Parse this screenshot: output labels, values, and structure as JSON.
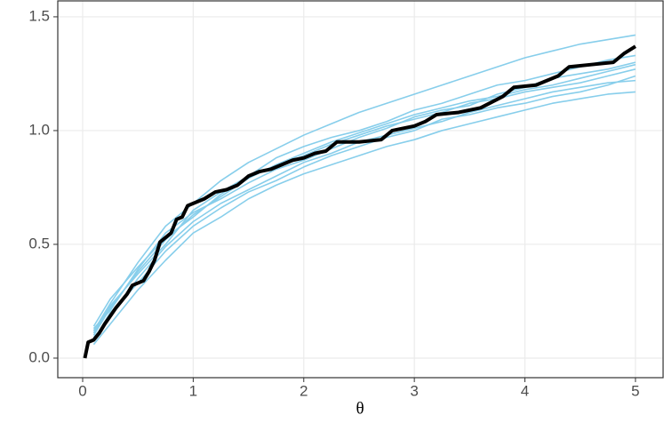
{
  "chart_data": {
    "type": "line",
    "x_label": "θ",
    "x": [
      0.1,
      0.25,
      0.5,
      0.75,
      1,
      1.25,
      1.5,
      1.75,
      2,
      2.25,
      2.5,
      2.75,
      3,
      3.25,
      3.5,
      3.75,
      4,
      4.25,
      4.5,
      4.75,
      5
    ],
    "series": [
      {
        "color": "#87ceeb",
        "values": [
          0.12,
          0.24,
          0.42,
          0.58,
          0.68,
          0.78,
          0.86,
          0.92,
          0.98,
          1.03,
          1.08,
          1.12,
          1.16,
          1.2,
          1.24,
          1.28,
          1.32,
          1.35,
          1.38,
          1.4,
          1.42
        ]
      },
      {
        "color": "#87ceeb",
        "values": [
          0.06,
          0.15,
          0.3,
          0.43,
          0.55,
          0.62,
          0.7,
          0.76,
          0.81,
          0.85,
          0.89,
          0.93,
          0.96,
          1.0,
          1.03,
          1.06,
          1.09,
          1.12,
          1.14,
          1.16,
          1.17
        ]
      },
      {
        "color": "#87ceeb",
        "values": [
          0.1,
          0.22,
          0.38,
          0.52,
          0.63,
          0.71,
          0.79,
          0.85,
          0.9,
          0.95,
          0.99,
          1.03,
          1.07,
          1.1,
          1.13,
          1.15,
          1.18,
          1.2,
          1.23,
          1.26,
          1.29
        ]
      },
      {
        "color": "#87ceeb",
        "values": [
          0.09,
          0.18,
          0.35,
          0.49,
          0.6,
          0.68,
          0.74,
          0.8,
          0.86,
          0.9,
          0.95,
          0.98,
          1.01,
          1.04,
          1.08,
          1.11,
          1.14,
          1.17,
          1.19,
          1.21,
          1.22
        ]
      },
      {
        "color": "#87ceeb",
        "values": [
          0.14,
          0.26,
          0.4,
          0.53,
          0.62,
          0.72,
          0.8,
          0.88,
          0.93,
          0.97,
          1.0,
          1.04,
          1.09,
          1.12,
          1.16,
          1.2,
          1.22,
          1.25,
          1.28,
          1.31,
          1.33
        ]
      },
      {
        "color": "#87ceeb",
        "values": [
          0.08,
          0.2,
          0.33,
          0.47,
          0.58,
          0.66,
          0.73,
          0.78,
          0.84,
          0.89,
          0.93,
          0.97,
          1.0,
          1.05,
          1.07,
          1.1,
          1.12,
          1.15,
          1.17,
          1.2,
          1.24
        ]
      },
      {
        "color": "#87ceeb",
        "values": [
          0.11,
          0.23,
          0.37,
          0.5,
          0.65,
          0.73,
          0.8,
          0.84,
          0.89,
          0.94,
          0.98,
          1.02,
          1.05,
          1.08,
          1.12,
          1.14,
          1.17,
          1.19,
          1.21,
          1.24,
          1.27
        ]
      },
      {
        "color": "#87ceeb",
        "values": [
          0.13,
          0.21,
          0.39,
          0.55,
          0.64,
          0.7,
          0.77,
          0.83,
          0.87,
          0.92,
          0.97,
          1.01,
          1.06,
          1.09,
          1.11,
          1.16,
          1.19,
          1.23,
          1.25,
          1.27,
          1.3
        ]
      },
      {
        "color": "#000000",
        "width": 4,
        "x": [
          0.02,
          0.05,
          0.1,
          0.15,
          0.2,
          0.3,
          0.4,
          0.45,
          0.55,
          0.6,
          0.65,
          0.7,
          0.8,
          0.85,
          0.9,
          0.95,
          1.0,
          1.1,
          1.2,
          1.3,
          1.4,
          1.5,
          1.6,
          1.7,
          1.8,
          1.9,
          2.0,
          2.1,
          2.2,
          2.3,
          2.5,
          2.7,
          2.8,
          3.0,
          3.1,
          3.2,
          3.4,
          3.6,
          3.8,
          3.9,
          4.1,
          4.3,
          4.4,
          4.6,
          4.8,
          4.9,
          5.0
        ],
        "values": [
          0.0,
          0.07,
          0.08,
          0.11,
          0.15,
          0.22,
          0.28,
          0.32,
          0.34,
          0.38,
          0.43,
          0.51,
          0.55,
          0.61,
          0.62,
          0.67,
          0.68,
          0.7,
          0.73,
          0.74,
          0.76,
          0.8,
          0.82,
          0.83,
          0.85,
          0.87,
          0.88,
          0.9,
          0.91,
          0.95,
          0.95,
          0.96,
          1.0,
          1.02,
          1.04,
          1.07,
          1.08,
          1.1,
          1.15,
          1.19,
          1.2,
          1.24,
          1.28,
          1.29,
          1.3,
          1.34,
          1.37
        ]
      }
    ],
    "xlim": [
      -0.225,
      5.25
    ],
    "ylim": [
      -0.086,
      1.57
    ],
    "xticks": [
      0,
      1,
      2,
      3,
      4,
      5
    ],
    "yticks": [
      {
        "value": 0,
        "label": "0.0"
      },
      {
        "value": 0.5,
        "label": "0.5"
      },
      {
        "value": 1,
        "label": "1.0"
      },
      {
        "value": 1.5,
        "label": "1.5"
      }
    ],
    "grid": true
  }
}
